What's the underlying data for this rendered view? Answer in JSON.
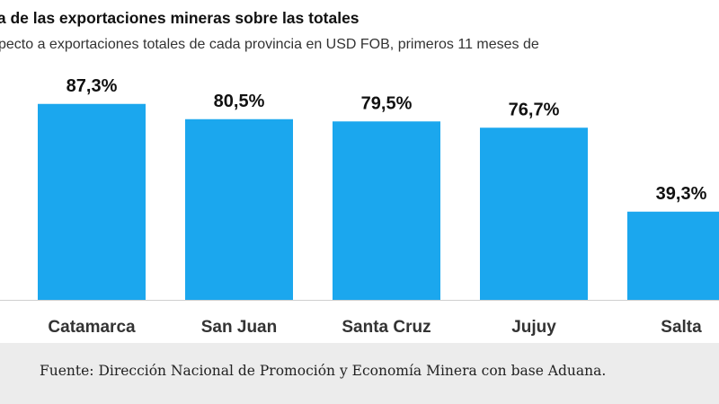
{
  "chart_data": {
    "type": "bar",
    "title": "ia de las exportaciones mineras sobre las totales",
    "subtitle": "pecto a exportaciones totales de cada provincia en USD FOB, primeros 11 meses de",
    "categories": [
      "Catamarca",
      "San Juan",
      "Santa Cruz",
      "Jujuy",
      "Salta"
    ],
    "values": [
      87.3,
      80.5,
      79.5,
      76.7,
      39.3
    ],
    "value_labels": [
      "87,3%",
      "80,5%",
      "79,5%",
      "76,7%",
      "39,3%"
    ],
    "unit": "%",
    "ylim": [
      0,
      100
    ],
    "grid": false,
    "bar_color": "#1ba7ee"
  },
  "footer": {
    "source": "Fuente: Dirección Nacional de Promoción y Economía Minera con base Aduana."
  }
}
